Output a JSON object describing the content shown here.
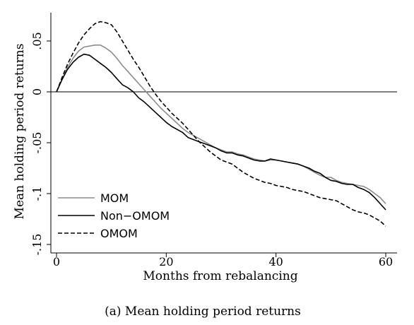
{
  "caption": "(a) Mean holding period returns",
  "chart_data": {
    "type": "line",
    "xlabel": "Months from rebalancing",
    "ylabel": "Mean holding period returns",
    "xlim": [
      0,
      60
    ],
    "ylim": [
      -0.155,
      0.078
    ],
    "xticks": [
      0,
      20,
      40,
      60
    ],
    "xtick_labels": [
      "0",
      "20",
      "40",
      "60"
    ],
    "yticks": [
      0.05,
      0,
      -0.05,
      -0.1,
      -0.15
    ],
    "ytick_labels": [
      ".05",
      "0",
      "-.05",
      "-.1",
      "-.15"
    ],
    "reference_line_y": 0,
    "legend_position": "bottom-left",
    "series": [
      {
        "name": "MOM",
        "color": "#8c8c8c",
        "dash": "solid",
        "points": [
          [
            0,
            0
          ],
          [
            1,
            0.012
          ],
          [
            2,
            0.024
          ],
          [
            3,
            0.033
          ],
          [
            4,
            0.04
          ],
          [
            5,
            0.044
          ],
          [
            6,
            0.045
          ],
          [
            7,
            0.046
          ],
          [
            8,
            0.046
          ],
          [
            9,
            0.043
          ],
          [
            10,
            0.039
          ],
          [
            11,
            0.033
          ],
          [
            12,
            0.026
          ],
          [
            13,
            0.02
          ],
          [
            14,
            0.014
          ],
          [
            15,
            0.008
          ],
          [
            16,
            0.002
          ],
          [
            17,
            -0.004
          ],
          [
            18,
            -0.01
          ],
          [
            19,
            -0.016
          ],
          [
            20,
            -0.021
          ],
          [
            21,
            -0.026
          ],
          [
            22,
            -0.031
          ],
          [
            23,
            -0.036
          ],
          [
            24,
            -0.04
          ],
          [
            25,
            -0.043
          ],
          [
            26,
            -0.046
          ],
          [
            27,
            -0.049
          ],
          [
            28,
            -0.052
          ],
          [
            29,
            -0.055
          ],
          [
            30,
            -0.057
          ],
          [
            31,
            -0.059
          ],
          [
            32,
            -0.059
          ],
          [
            33,
            -0.061
          ],
          [
            34,
            -0.062
          ],
          [
            35,
            -0.064
          ],
          [
            36,
            -0.066
          ],
          [
            37,
            -0.067
          ],
          [
            38,
            -0.068
          ],
          [
            39,
            -0.067
          ],
          [
            40,
            -0.067
          ],
          [
            41,
            -0.068
          ],
          [
            42,
            -0.069
          ],
          [
            43,
            -0.07
          ],
          [
            44,
            -0.071
          ],
          [
            45,
            -0.073
          ],
          [
            46,
            -0.076
          ],
          [
            47,
            -0.079
          ],
          [
            48,
            -0.082
          ],
          [
            49,
            -0.084
          ],
          [
            50,
            -0.084
          ],
          [
            51,
            -0.087
          ],
          [
            52,
            -0.089
          ],
          [
            53,
            -0.09
          ],
          [
            54,
            -0.091
          ],
          [
            55,
            -0.092
          ],
          [
            56,
            -0.093
          ],
          [
            57,
            -0.096
          ],
          [
            58,
            -0.1
          ],
          [
            59,
            -0.104
          ],
          [
            60,
            -0.11
          ]
        ]
      },
      {
        "name": "Non−OMOM",
        "color": "#000000",
        "dash": "solid",
        "points": [
          [
            0,
            0
          ],
          [
            1,
            0.012
          ],
          [
            2,
            0.022
          ],
          [
            3,
            0.029
          ],
          [
            4,
            0.034
          ],
          [
            5,
            0.037
          ],
          [
            6,
            0.036
          ],
          [
            7,
            0.032
          ],
          [
            8,
            0.028
          ],
          [
            9,
            0.024
          ],
          [
            10,
            0.019
          ],
          [
            11,
            0.013
          ],
          [
            12,
            0.007
          ],
          [
            13,
            0.004
          ],
          [
            14,
            0.0
          ],
          [
            15,
            -0.006
          ],
          [
            16,
            -0.01
          ],
          [
            17,
            -0.015
          ],
          [
            18,
            -0.02
          ],
          [
            19,
            -0.025
          ],
          [
            20,
            -0.03
          ],
          [
            21,
            -0.034
          ],
          [
            22,
            -0.037
          ],
          [
            23,
            -0.04
          ],
          [
            24,
            -0.045
          ],
          [
            25,
            -0.047
          ],
          [
            26,
            -0.049
          ],
          [
            27,
            -0.051
          ],
          [
            28,
            -0.053
          ],
          [
            29,
            -0.055
          ],
          [
            30,
            -0.058
          ],
          [
            31,
            -0.06
          ],
          [
            32,
            -0.06
          ],
          [
            33,
            -0.062
          ],
          [
            34,
            -0.063
          ],
          [
            35,
            -0.065
          ],
          [
            36,
            -0.067
          ],
          [
            37,
            -0.068
          ],
          [
            38,
            -0.068
          ],
          [
            39,
            -0.066
          ],
          [
            40,
            -0.067
          ],
          [
            41,
            -0.068
          ],
          [
            42,
            -0.069
          ],
          [
            43,
            -0.07
          ],
          [
            44,
            -0.071
          ],
          [
            45,
            -0.073
          ],
          [
            46,
            -0.075
          ],
          [
            47,
            -0.078
          ],
          [
            48,
            -0.08
          ],
          [
            49,
            -0.084
          ],
          [
            50,
            -0.087
          ],
          [
            51,
            -0.088
          ],
          [
            52,
            -0.09
          ],
          [
            53,
            -0.091
          ],
          [
            54,
            -0.091
          ],
          [
            55,
            -0.094
          ],
          [
            56,
            -0.096
          ],
          [
            57,
            -0.099
          ],
          [
            58,
            -0.104
          ],
          [
            59,
            -0.11
          ],
          [
            60,
            -0.116
          ]
        ]
      },
      {
        "name": "OMOM",
        "color": "#000000",
        "dash": "dashed",
        "points": [
          [
            0,
            0
          ],
          [
            1,
            0.014
          ],
          [
            2,
            0.027
          ],
          [
            3,
            0.038
          ],
          [
            4,
            0.048
          ],
          [
            5,
            0.056
          ],
          [
            6,
            0.062
          ],
          [
            7,
            0.067
          ],
          [
            8,
            0.069
          ],
          [
            9,
            0.068
          ],
          [
            10,
            0.066
          ],
          [
            11,
            0.059
          ],
          [
            12,
            0.05
          ],
          [
            13,
            0.041
          ],
          [
            14,
            0.032
          ],
          [
            15,
            0.024
          ],
          [
            16,
            0.015
          ],
          [
            17,
            0.006
          ],
          [
            18,
            -0.002
          ],
          [
            19,
            -0.009
          ],
          [
            20,
            -0.015
          ],
          [
            21,
            -0.021
          ],
          [
            22,
            -0.026
          ],
          [
            23,
            -0.031
          ],
          [
            24,
            -0.037
          ],
          [
            25,
            -0.043
          ],
          [
            26,
            -0.049
          ],
          [
            27,
            -0.054
          ],
          [
            28,
            -0.059
          ],
          [
            29,
            -0.063
          ],
          [
            30,
            -0.067
          ],
          [
            31,
            -0.069
          ],
          [
            32,
            -0.071
          ],
          [
            33,
            -0.075
          ],
          [
            34,
            -0.079
          ],
          [
            35,
            -0.082
          ],
          [
            36,
            -0.085
          ],
          [
            37,
            -0.087
          ],
          [
            38,
            -0.089
          ],
          [
            39,
            -0.09
          ],
          [
            40,
            -0.092
          ],
          [
            41,
            -0.093
          ],
          [
            42,
            -0.094
          ],
          [
            43,
            -0.096
          ],
          [
            44,
            -0.097
          ],
          [
            45,
            -0.098
          ],
          [
            46,
            -0.1
          ],
          [
            47,
            -0.102
          ],
          [
            48,
            -0.104
          ],
          [
            49,
            -0.105
          ],
          [
            50,
            -0.106
          ],
          [
            51,
            -0.107
          ],
          [
            52,
            -0.11
          ],
          [
            53,
            -0.113
          ],
          [
            54,
            -0.116
          ],
          [
            55,
            -0.118
          ],
          [
            56,
            -0.119
          ],
          [
            57,
            -0.121
          ],
          [
            58,
            -0.124
          ],
          [
            59,
            -0.127
          ],
          [
            60,
            -0.132
          ]
        ]
      }
    ]
  }
}
